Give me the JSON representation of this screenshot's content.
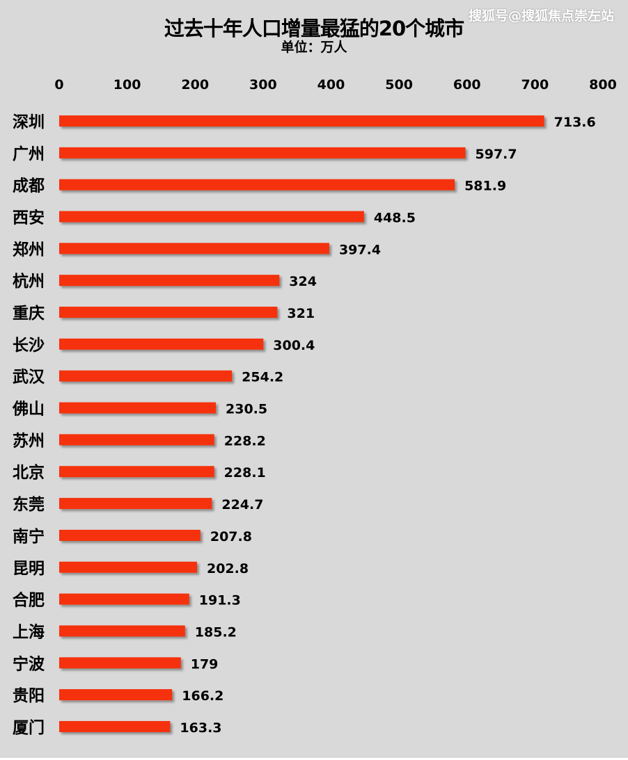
{
  "watermark": "搜狐号@搜狐焦点崇左站",
  "chart_data": {
    "type": "bar",
    "orientation": "horizontal",
    "title": "过去十年人口增量最猛的20个城市",
    "subtitle": "单位：万人",
    "categories": [
      "深圳",
      "广州",
      "成都",
      "西安",
      "郑州",
      "杭州",
      "重庆",
      "长沙",
      "武汉",
      "佛山",
      "苏州",
      "北京",
      "东莞",
      "南宁",
      "昆明",
      "合肥",
      "上海",
      "宁波",
      "贵阳",
      "厦门"
    ],
    "values": [
      713.6,
      597.7,
      581.9,
      448.5,
      397.4,
      324,
      321,
      300.4,
      254.2,
      230.5,
      228.2,
      228.1,
      224.7,
      207.8,
      202.8,
      191.3,
      185.2,
      179,
      166.2,
      163.3
    ],
    "value_labels": [
      "713.6",
      "597.7",
      "581.9",
      "448.5",
      "397.4",
      "324",
      "321",
      "300.4",
      "254.2",
      "230.5",
      "228.2",
      "228.1",
      "224.7",
      "207.8",
      "202.8",
      "191.3",
      "185.2",
      "179",
      "166.2",
      "163.3"
    ],
    "xlim": [
      0,
      800
    ],
    "xticks": [
      "0",
      "100",
      "200",
      "300",
      "400",
      "500",
      "600",
      "700",
      "800"
    ],
    "axis_position": "top",
    "grid": false,
    "bar_color": "#f5330a"
  }
}
